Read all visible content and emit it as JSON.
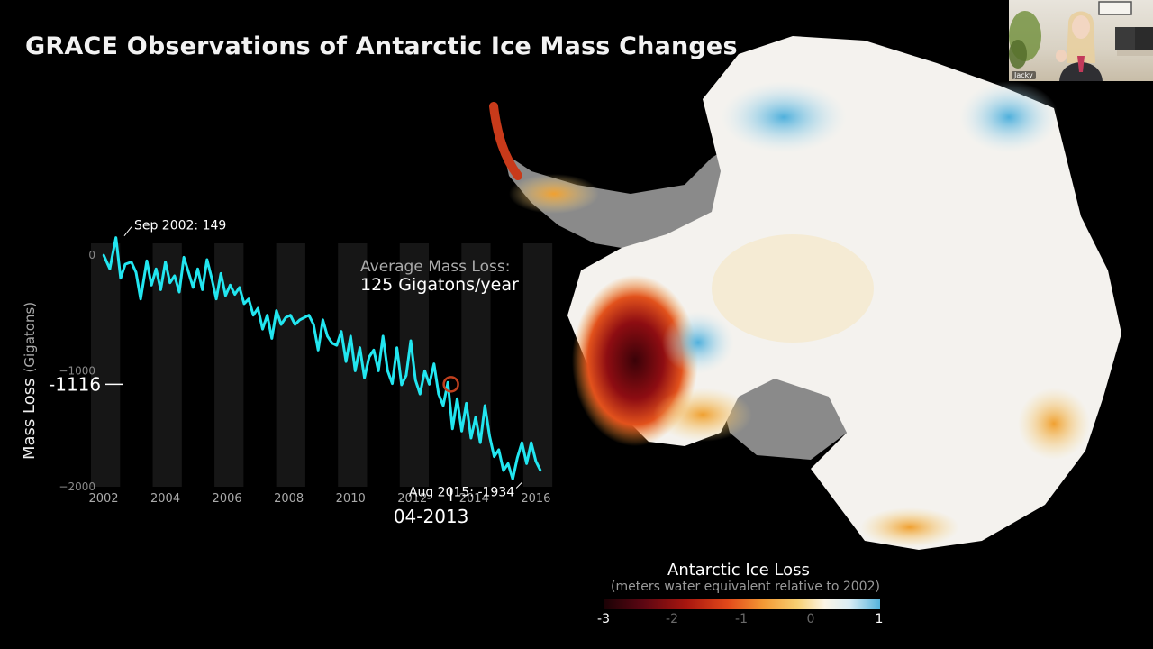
{
  "title": "GRACE Observations of Antarctic Ice Mass Changes",
  "chart_data": {
    "type": "line",
    "title": "GRACE Observations of Antarctic Ice Mass Changes",
    "ylabel": "Mass Loss",
    "ylabel_unit": "(Gigatons)",
    "xlabel": "",
    "xlim": [
      2002,
      2016.5
    ],
    "ylim": [
      -2000,
      100
    ],
    "x_ticks": [
      "2002",
      "2004",
      "2006",
      "2008",
      "2010",
      "2012",
      "2014",
      "2016"
    ],
    "y_ticks": [
      "0",
      "−1000",
      "−2000"
    ],
    "line_color": "#22e6f0",
    "grid": "alternating year bands",
    "series": [
      {
        "x": [
          2002.0,
          2002.2,
          2002.4,
          2002.55,
          2002.7,
          2002.9,
          2003.05,
          2003.2,
          2003.4,
          2003.55,
          2003.7,
          2003.85,
          2004.0,
          2004.15,
          2004.3,
          2004.45,
          2004.6,
          2004.75,
          2004.9,
          2005.05,
          2005.2,
          2005.35,
          2005.5,
          2005.65,
          2005.8,
          2005.95,
          2006.1,
          2006.25,
          2006.4,
          2006.55,
          2006.7,
          2006.85,
          2007.0,
          2007.15,
          2007.3,
          2007.45,
          2007.6,
          2007.75,
          2007.9,
          2008.05,
          2008.2,
          2008.35,
          2008.5,
          2008.65,
          2008.8,
          2008.95,
          2009.1,
          2009.25,
          2009.4,
          2009.55,
          2009.7,
          2009.85,
          2010.0,
          2010.15,
          2010.3,
          2010.45,
          2010.6,
          2010.75,
          2010.9,
          2011.05,
          2011.2,
          2011.35,
          2011.5,
          2011.65,
          2011.8,
          2011.95,
          2012.1,
          2012.25,
          2012.4,
          2012.55,
          2012.7,
          2012.85,
          2013.0,
          2013.15,
          2013.3,
          2013.45,
          2013.6,
          2013.75,
          2013.9,
          2014.05,
          2014.2,
          2014.35,
          2014.5,
          2014.65,
          2014.8,
          2014.95,
          2015.1,
          2015.25,
          2015.4,
          2015.55,
          2015.7,
          2015.85,
          2016.0,
          2016.15
        ],
        "y": [
          0,
          -120,
          149,
          -200,
          -80,
          -60,
          -150,
          -380,
          -50,
          -260,
          -120,
          -300,
          -60,
          -240,
          -180,
          -320,
          -20,
          -150,
          -280,
          -120,
          -300,
          -40,
          -200,
          -380,
          -160,
          -350,
          -260,
          -340,
          -280,
          -420,
          -380,
          -520,
          -460,
          -640,
          -520,
          -720,
          -480,
          -600,
          -540,
          -520,
          -600,
          -560,
          -540,
          -520,
          -600,
          -820,
          -560,
          -700,
          -760,
          -780,
          -660,
          -920,
          -700,
          -1000,
          -800,
          -1060,
          -880,
          -820,
          -1000,
          -700,
          -1000,
          -1110,
          -800,
          -1120,
          -1040,
          -740,
          -1080,
          -1200,
          -1000,
          -1116,
          -940,
          -1200,
          -1300,
          -1100,
          -1500,
          -1240,
          -1520,
          -1280,
          -1580,
          -1400,
          -1620,
          -1300,
          -1560,
          -1740,
          -1680,
          -1860,
          -1800,
          -1934,
          -1750,
          -1620,
          -1800,
          -1620,
          -1780,
          -1860
        ]
      }
    ],
    "annotations": [
      {
        "label": "Sep 2002: 149",
        "x": 2002.67,
        "y": 149
      },
      {
        "label": "Aug 2015: -1934",
        "x": 2015.6,
        "y": -1934
      },
      {
        "label": "Average Mass Loss:",
        "x": null,
        "y": null
      },
      {
        "label": "125 Gigatons/year",
        "x": null,
        "y": null
      }
    ],
    "current": {
      "date": "04-2013",
      "value": -1116,
      "value_label": "-1116"
    }
  },
  "map_legend": {
    "title": "Antarctic Ice Loss",
    "subtitle": "(meters water equivalent relative to 2002)",
    "ticks": [
      "-3",
      "-2",
      "-1",
      "0",
      "1"
    ]
  },
  "webcam": {
    "name": "Jacky"
  }
}
